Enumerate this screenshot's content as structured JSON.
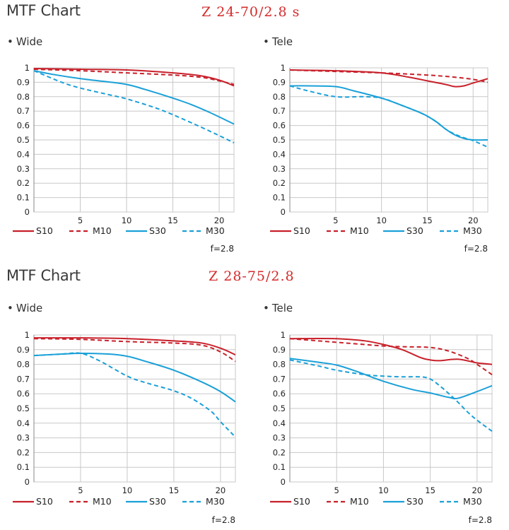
{
  "sections": [
    {
      "title": "MTF Chart",
      "lens": "Z 24-70/2.8 s",
      "panels": [
        {
          "label": "Wide"
        },
        {
          "label": "Tele"
        }
      ]
    },
    {
      "title": "MTF Chart",
      "lens": "Z 28-75/2.8",
      "panels": [
        {
          "label": "Wide"
        },
        {
          "label": "Tele"
        }
      ]
    }
  ],
  "colors": {
    "red": "#c8202a",
    "blue": "#1aa0d8",
    "grid": "#c8c8c8"
  },
  "legend": [
    "S10",
    "M10",
    "S30",
    "M30"
  ],
  "aperture": "f=2.8",
  "chart_data": [
    {
      "type": "line",
      "title": "Z 24-70/2.8 s — Wide",
      "xlim": [
        0,
        21.6
      ],
      "ylim": [
        0,
        1
      ],
      "x_ticks": [
        5,
        10,
        15,
        20
      ],
      "y_ticks": [
        0,
        0.1,
        0.2,
        0.3,
        0.4,
        0.5,
        0.6,
        0.7,
        0.8,
        0.9,
        1
      ],
      "grid": true,
      "legend_position": "bottom",
      "series": [
        {
          "name": "S10",
          "color": "red",
          "style": "solid",
          "x": [
            0,
            5,
            10,
            15,
            18,
            20,
            21.6
          ],
          "y": [
            0.995,
            0.99,
            0.985,
            0.965,
            0.945,
            0.915,
            0.875
          ]
        },
        {
          "name": "M10",
          "color": "red",
          "style": "dashed",
          "x": [
            0,
            5,
            10,
            15,
            18,
            20,
            21.6
          ],
          "y": [
            0.99,
            0.98,
            0.965,
            0.95,
            0.935,
            0.91,
            0.885
          ]
        },
        {
          "name": "S30",
          "color": "blue",
          "style": "solid",
          "x": [
            0,
            2,
            5,
            7,
            10,
            12,
            15,
            17,
            19,
            21.6
          ],
          "y": [
            0.98,
            0.955,
            0.925,
            0.91,
            0.885,
            0.85,
            0.79,
            0.745,
            0.69,
            0.61
          ]
        },
        {
          "name": "M30",
          "color": "blue",
          "style": "dashed",
          "x": [
            0,
            3,
            5,
            8,
            10,
            13,
            15,
            18,
            20,
            21.6
          ],
          "y": [
            0.98,
            0.9,
            0.86,
            0.815,
            0.785,
            0.725,
            0.675,
            0.59,
            0.53,
            0.48
          ]
        }
      ]
    },
    {
      "type": "line",
      "title": "Z 24-70/2.8 s — Tele",
      "xlim": [
        0,
        21.6
      ],
      "ylim": [
        0,
        1
      ],
      "x_ticks": [
        5,
        10,
        15,
        20
      ],
      "y_ticks": [
        0,
        0.1,
        0.2,
        0.3,
        0.4,
        0.5,
        0.6,
        0.7,
        0.8,
        0.9,
        1
      ],
      "grid": true,
      "legend_position": "bottom",
      "series": [
        {
          "name": "S10",
          "color": "red",
          "style": "solid",
          "x": [
            0,
            5,
            10,
            13,
            15,
            17,
            18,
            19,
            20,
            21.6
          ],
          "y": [
            0.985,
            0.98,
            0.965,
            0.935,
            0.91,
            0.885,
            0.87,
            0.875,
            0.895,
            0.925
          ]
        },
        {
          "name": "M10",
          "color": "red",
          "style": "dashed",
          "x": [
            0,
            5,
            10,
            15,
            18,
            20,
            21.6
          ],
          "y": [
            0.985,
            0.975,
            0.965,
            0.95,
            0.935,
            0.92,
            0.9
          ]
        },
        {
          "name": "S30",
          "color": "blue",
          "style": "solid",
          "x": [
            0,
            2,
            5,
            7,
            10,
            12,
            14,
            15,
            16,
            17,
            18,
            19,
            20,
            21.6
          ],
          "y": [
            0.875,
            0.875,
            0.87,
            0.84,
            0.79,
            0.745,
            0.695,
            0.665,
            0.625,
            0.575,
            0.535,
            0.51,
            0.5,
            0.5
          ]
        },
        {
          "name": "M30",
          "color": "blue",
          "style": "dashed",
          "x": [
            0,
            2,
            5,
            8,
            10,
            12,
            14,
            15,
            16,
            17,
            18,
            19,
            20,
            21.6
          ],
          "y": [
            0.875,
            0.84,
            0.8,
            0.8,
            0.79,
            0.745,
            0.695,
            0.665,
            0.625,
            0.575,
            0.54,
            0.515,
            0.495,
            0.45
          ]
        }
      ]
    },
    {
      "type": "line",
      "title": "Z 28-75/2.8 — Wide",
      "xlim": [
        0,
        21.6
      ],
      "ylim": [
        0,
        1
      ],
      "x_ticks": [
        5,
        10,
        15,
        20
      ],
      "y_ticks": [
        0,
        0.1,
        0.2,
        0.3,
        0.4,
        0.5,
        0.6,
        0.7,
        0.8,
        0.9,
        1
      ],
      "grid": true,
      "legend_position": "bottom",
      "series": [
        {
          "name": "S10",
          "color": "red",
          "style": "solid",
          "x": [
            0,
            5,
            10,
            15,
            18,
            20,
            21.6
          ],
          "y": [
            0.98,
            0.98,
            0.975,
            0.96,
            0.945,
            0.91,
            0.865
          ]
        },
        {
          "name": "M10",
          "color": "red",
          "style": "dashed",
          "x": [
            0,
            5,
            10,
            15,
            18,
            20,
            21.6
          ],
          "y": [
            0.975,
            0.97,
            0.955,
            0.945,
            0.93,
            0.885,
            0.82
          ]
        },
        {
          "name": "S30",
          "color": "blue",
          "style": "solid",
          "x": [
            0,
            3,
            5,
            8,
            10,
            12,
            15,
            18,
            20,
            21.6
          ],
          "y": [
            0.86,
            0.87,
            0.875,
            0.87,
            0.855,
            0.82,
            0.76,
            0.68,
            0.615,
            0.545
          ]
        },
        {
          "name": "M30",
          "color": "blue",
          "style": "dashed",
          "x": [
            0,
            3,
            5,
            7,
            10,
            12,
            15,
            17,
            19,
            20,
            21.6
          ],
          "y": [
            0.86,
            0.87,
            0.875,
            0.825,
            0.72,
            0.675,
            0.62,
            0.565,
            0.48,
            0.41,
            0.305
          ]
        }
      ]
    },
    {
      "type": "line",
      "title": "Z 28-75/2.8 — Tele",
      "xlim": [
        0,
        21.6
      ],
      "ylim": [
        0,
        1
      ],
      "x_ticks": [
        5,
        10,
        15,
        20
      ],
      "y_ticks": [
        0,
        0.1,
        0.2,
        0.3,
        0.4,
        0.5,
        0.6,
        0.7,
        0.8,
        0.9,
        1
      ],
      "grid": true,
      "legend_position": "bottom",
      "series": [
        {
          "name": "S10",
          "color": "red",
          "style": "solid",
          "x": [
            0,
            5,
            8,
            10,
            12,
            14,
            15,
            16,
            18,
            20,
            21.6
          ],
          "y": [
            0.975,
            0.975,
            0.96,
            0.935,
            0.9,
            0.845,
            0.83,
            0.825,
            0.835,
            0.81,
            0.8
          ]
        },
        {
          "name": "M10",
          "color": "red",
          "style": "dashed",
          "x": [
            0,
            5,
            8,
            10,
            12,
            15,
            17,
            19,
            20,
            21.6
          ],
          "y": [
            0.975,
            0.95,
            0.935,
            0.925,
            0.92,
            0.915,
            0.89,
            0.84,
            0.8,
            0.73
          ]
        },
        {
          "name": "S30",
          "color": "blue",
          "style": "solid",
          "x": [
            0,
            3,
            5,
            7,
            10,
            13,
            15,
            17,
            18,
            20,
            21.6
          ],
          "y": [
            0.84,
            0.815,
            0.795,
            0.755,
            0.685,
            0.63,
            0.605,
            0.575,
            0.57,
            0.615,
            0.655
          ]
        },
        {
          "name": "M30",
          "color": "blue",
          "style": "dashed",
          "x": [
            0,
            3,
            5,
            8,
            10,
            12,
            14,
            15,
            16,
            17,
            18,
            19,
            20,
            21.6
          ],
          "y": [
            0.83,
            0.79,
            0.76,
            0.73,
            0.72,
            0.715,
            0.715,
            0.7,
            0.655,
            0.6,
            0.54,
            0.475,
            0.42,
            0.345
          ]
        }
      ]
    }
  ]
}
